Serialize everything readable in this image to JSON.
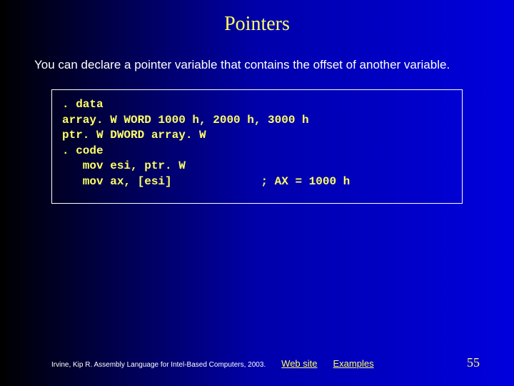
{
  "title": "Pointers",
  "body": "You can declare a pointer variable that contains the offset of another variable.",
  "code": ". data\narray. W WORD 1000 h, 2000 h, 3000 h\nptr. W DWORD array. W\n. code\n   mov esi, ptr. W\n   mov ax, [esi]             ; AX = 1000 h",
  "footer": {
    "citation": "Irvine, Kip R. Assembly Language for Intel-Based Computers, 2003.",
    "link1": "Web site",
    "link2": "Examples",
    "page": "55"
  },
  "colors": {
    "title": "#ffff66",
    "text": "#ffffff",
    "code": "#ffff66",
    "link": "#ffff66",
    "bg_left": "#000000",
    "bg_right": "#0000dd"
  }
}
